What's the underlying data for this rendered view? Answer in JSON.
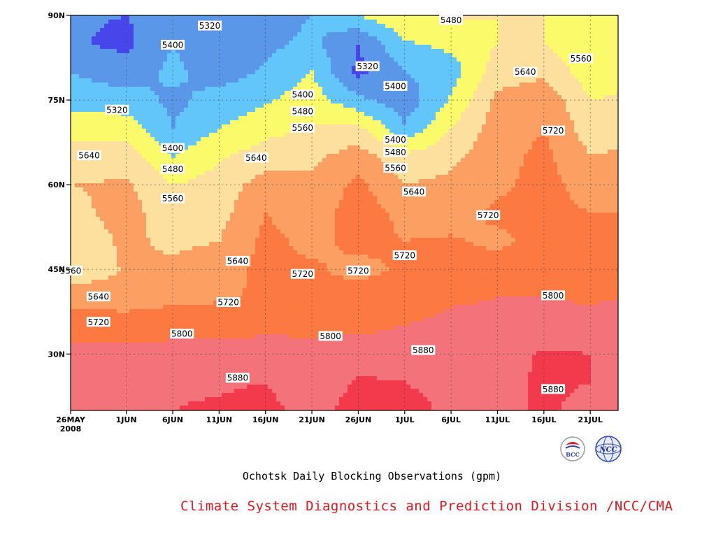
{
  "chart_data": {
    "type": "heatmap",
    "title": "Ochotsk Daily Blocking Observations (gpm)",
    "xlabel": "",
    "ylabel": "",
    "x_start": "2008-05-26",
    "x_end": "2008-07-24",
    "x_ticks": [
      {
        "date": "2008-05-26",
        "label": "26MAY",
        "label2": "2008"
      },
      {
        "date": "2008-06-01",
        "label": "1JUN"
      },
      {
        "date": "2008-06-06",
        "label": "6JUN"
      },
      {
        "date": "2008-06-11",
        "label": "11JUN"
      },
      {
        "date": "2008-06-16",
        "label": "16JUN"
      },
      {
        "date": "2008-06-21",
        "label": "21JUN"
      },
      {
        "date": "2008-06-26",
        "label": "26JUN"
      },
      {
        "date": "2008-07-01",
        "label": "1JUL"
      },
      {
        "date": "2008-07-06",
        "label": "6JUL"
      },
      {
        "date": "2008-07-11",
        "label": "11JUL"
      },
      {
        "date": "2008-07-16",
        "label": "16JUL"
      },
      {
        "date": "2008-07-21",
        "label": "21JUL"
      }
    ],
    "ylim": [
      20,
      90
    ],
    "y_ticks": [
      {
        "value": 30,
        "label": "30N"
      },
      {
        "value": 45,
        "label": "45N"
      },
      {
        "value": 60,
        "label": "60N"
      },
      {
        "value": 75,
        "label": "75N"
      },
      {
        "value": 90,
        "label": "90N"
      }
    ],
    "grid": true,
    "contour_levels": [
      5320,
      5400,
      5480,
      5560,
      5640,
      5720,
      5800,
      5880
    ],
    "fill_colors": [
      "#4646ea",
      "#5a97e8",
      "#63c6fb",
      "#fbfa6a",
      "#fde09e",
      "#fb9f63",
      "#fd7942",
      "#f4737b",
      "#f23a4c"
    ],
    "lat_profiles": {
      "lats": [
        20,
        25,
        30,
        35,
        40,
        45,
        50,
        55,
        60,
        65,
        70,
        75,
        80,
        85,
        90
      ],
      "columns": [
        {
          "date": "2008-05-26",
          "z": [
            5850,
            5840,
            5820,
            5760,
            5700,
            5565,
            5570,
            5610,
            5640,
            5600,
            5520,
            5450,
            5400,
            5330,
            5330
          ]
        },
        {
          "date": "2008-06-01",
          "z": [
            5860,
            5850,
            5820,
            5760,
            5680,
            5650,
            5660,
            5680,
            5650,
            5600,
            5520,
            5440,
            5350,
            5300,
            5320
          ]
        },
        {
          "date": "2008-06-06",
          "z": [
            5880,
            5870,
            5830,
            5770,
            5700,
            5660,
            5620,
            5580,
            5560,
            5480,
            5400,
            5380,
            5420,
            5400,
            5360
          ]
        },
        {
          "date": "2008-06-11",
          "z": [
            5890,
            5870,
            5830,
            5770,
            5710,
            5690,
            5640,
            5610,
            5590,
            5550,
            5480,
            5430,
            5360,
            5330,
            5320
          ]
        },
        {
          "date": "2008-06-16",
          "z": [
            5910,
            5880,
            5840,
            5780,
            5730,
            5740,
            5740,
            5720,
            5680,
            5600,
            5530,
            5470,
            5410,
            5380,
            5360
          ]
        },
        {
          "date": "2008-06-21",
          "z": [
            5840,
            5820,
            5810,
            5790,
            5730,
            5730,
            5700,
            5680,
            5660,
            5620,
            5570,
            5520,
            5480,
            5420,
            5400
          ]
        },
        {
          "date": "2008-06-26",
          "z": [
            5920,
            5890,
            5840,
            5780,
            5750,
            5700,
            5740,
            5760,
            5740,
            5680,
            5580,
            5420,
            5300,
            5320,
            5480
          ]
        },
        {
          "date": "2008-07-01",
          "z": [
            5900,
            5880,
            5850,
            5800,
            5760,
            5730,
            5720,
            5700,
            5640,
            5580,
            5410,
            5350,
            5400,
            5470,
            5550
          ]
        },
        {
          "date": "2008-07-06",
          "z": [
            5870,
            5860,
            5850,
            5820,
            5790,
            5760,
            5730,
            5680,
            5660,
            5620,
            5560,
            5490,
            5440,
            5500,
            5570
          ]
        },
        {
          "date": "2008-07-11",
          "z": [
            5860,
            5860,
            5850,
            5820,
            5800,
            5760,
            5700,
            5740,
            5700,
            5690,
            5680,
            5660,
            5600,
            5560,
            5560
          ]
        },
        {
          "date": "2008-07-16",
          "z": [
            5890,
            5890,
            5890,
            5830,
            5800,
            5760,
            5750,
            5750,
            5750,
            5740,
            5720,
            5700,
            5620,
            5560,
            5560
          ]
        },
        {
          "date": "2008-07-21",
          "z": [
            5860,
            5880,
            5880,
            5830,
            5790,
            5760,
            5730,
            5720,
            5680,
            5640,
            5600,
            5560,
            5520,
            5490,
            5500
          ]
        },
        {
          "date": "2008-07-24",
          "z": [
            5860,
            5875,
            5880,
            5830,
            5800,
            5760,
            5740,
            5720,
            5690,
            5650,
            5610,
            5570,
            5530,
            5500,
            5510
          ]
        }
      ]
    },
    "contour_labels": [
      {
        "date": "2008-06-10",
        "lat": 88.2,
        "value": 5320
      },
      {
        "date": "2008-06-06",
        "lat": 84.8,
        "value": 5400
      },
      {
        "date": "2008-05-31",
        "lat": 73.3,
        "value": 5320
      },
      {
        "date": "2008-06-20",
        "lat": 76.0,
        "value": 5400
      },
      {
        "date": "2008-06-20",
        "lat": 73.0,
        "value": 5480
      },
      {
        "date": "2008-06-20",
        "lat": 70.1,
        "value": 5560
      },
      {
        "date": "2008-06-06",
        "lat": 66.5,
        "value": 5400
      },
      {
        "date": "2008-06-06",
        "lat": 62.8,
        "value": 5480
      },
      {
        "date": "2008-06-06",
        "lat": 57.6,
        "value": 5560
      },
      {
        "date": "2008-05-28",
        "lat": 65.2,
        "value": 5640
      },
      {
        "date": "2008-06-15",
        "lat": 64.8,
        "value": 5640
      },
      {
        "date": "2008-06-27",
        "lat": 81.0,
        "value": 5320
      },
      {
        "date": "2008-06-30",
        "lat": 77.5,
        "value": 5400
      },
      {
        "date": "2008-07-06",
        "lat": 89.2,
        "value": 5480
      },
      {
        "date": "2008-07-14",
        "lat": 80.0,
        "value": 5640
      },
      {
        "date": "2008-07-20",
        "lat": 82.4,
        "value": 5560
      },
      {
        "date": "2008-07-17",
        "lat": 69.6,
        "value": 5720
      },
      {
        "date": "2008-06-30",
        "lat": 68.0,
        "value": 5400
      },
      {
        "date": "2008-06-30",
        "lat": 65.8,
        "value": 5480
      },
      {
        "date": "2008-06-30",
        "lat": 63.0,
        "value": 5560
      },
      {
        "date": "2008-07-02",
        "lat": 58.8,
        "value": 5640
      },
      {
        "date": "2008-07-10",
        "lat": 54.6,
        "value": 5720
      },
      {
        "date": "2008-07-01",
        "lat": 47.5,
        "value": 5720
      },
      {
        "date": "2008-06-26",
        "lat": 44.8,
        "value": 5720
      },
      {
        "date": "2008-06-20",
        "lat": 44.2,
        "value": 5720
      },
      {
        "date": "2008-06-13",
        "lat": 46.5,
        "value": 5640
      },
      {
        "date": "2008-05-26",
        "lat": 44.8,
        "value": 5560
      },
      {
        "date": "2008-05-29",
        "lat": 40.2,
        "value": 5640
      },
      {
        "date": "2008-05-29",
        "lat": 35.7,
        "value": 5720
      },
      {
        "date": "2008-06-12",
        "lat": 39.2,
        "value": 5720
      },
      {
        "date": "2008-06-07",
        "lat": 33.6,
        "value": 5800
      },
      {
        "date": "2008-06-23",
        "lat": 33.2,
        "value": 5800
      },
      {
        "date": "2008-07-03",
        "lat": 30.7,
        "value": 5880
      },
      {
        "date": "2008-07-17",
        "lat": 40.4,
        "value": 5800
      },
      {
        "date": "2008-06-13",
        "lat": 25.8,
        "value": 5880
      },
      {
        "date": "2008-07-17",
        "lat": 23.8,
        "value": 5880
      }
    ]
  },
  "caption": "Ochotsk Daily Blocking Observations (gpm)",
  "credit": "Climate System Diagnostics and Prediction Division /NCC/CMA",
  "logos": {
    "bcc_text": "BCC",
    "ncc_text": "NCC"
  }
}
